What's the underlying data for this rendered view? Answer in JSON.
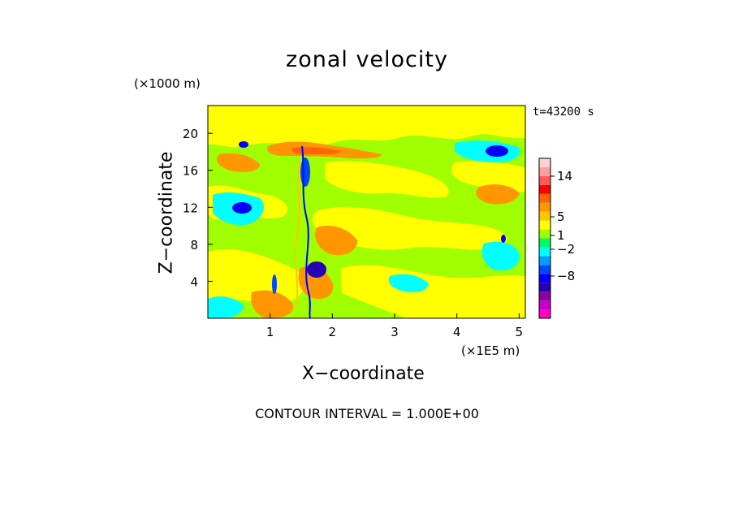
{
  "chart_data": {
    "type": "heatmap",
    "title": "zonal velocity",
    "xlabel": "X−coordinate",
    "ylabel": "Z−coordinate",
    "x_unit": "(×1E5 m)",
    "y_unit": "(×1000 m)",
    "time_label": "t=43200 s",
    "footer": "CONTOUR INTERVAL = 1.000E+00",
    "xlim": [
      0,
      5.1
    ],
    "ylim": [
      0,
      23
    ],
    "x_ticks": [
      "1",
      "2",
      "3",
      "4",
      "5"
    ],
    "y_ticks": [
      "4",
      "8",
      "12",
      "16",
      "20"
    ],
    "colorbar": {
      "levels": [
        {
          "color": "#ff00c8"
        },
        {
          "color": "#c800c8"
        },
        {
          "color": "#8c00a0"
        },
        {
          "color": "#2800b4"
        },
        {
          "color": "#0000ff"
        },
        {
          "color": "#0046ff"
        },
        {
          "color": "#00a0ff"
        },
        {
          "color": "#00ffff"
        },
        {
          "color": "#00ff64"
        },
        {
          "color": "#a0ff00"
        },
        {
          "color": "#ffff00"
        },
        {
          "color": "#ffc800"
        },
        {
          "color": "#ff9600"
        },
        {
          "color": "#ff6400"
        },
        {
          "color": "#ff0000"
        },
        {
          "color": "#ff5a5a"
        },
        {
          "color": "#ffa0a0"
        },
        {
          "color": "#ffd2d2"
        }
      ],
      "labels": [
        "14",
        "5",
        "1",
        "−2",
        "−8"
      ]
    }
  }
}
